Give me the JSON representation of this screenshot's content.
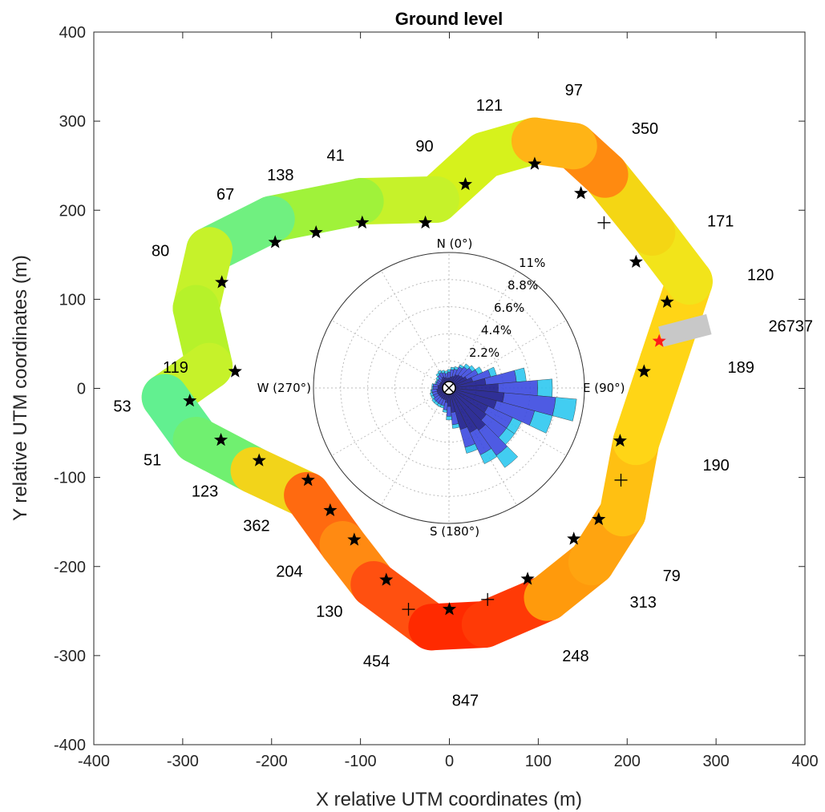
{
  "chart_data": {
    "type": "scatter",
    "title": "Ground level",
    "xlabel": "X relative UTM coordinates (m)",
    "ylabel": "Y relative UTM coordinates (m)",
    "xlim": [
      -400,
      400
    ],
    "ylim": [
      -400,
      400
    ],
    "xticks": [
      "-400",
      "-300",
      "-200",
      "-100",
      "0",
      "100",
      "200",
      "300",
      "400"
    ],
    "yticks": [
      "400",
      "300",
      "200",
      "100",
      "0",
      "-100",
      "-200",
      "-300",
      "-400"
    ],
    "grid": false,
    "colormap": "jet",
    "segment_labels": [
      {
        "text": "97",
        "x": 140,
        "y": 335
      },
      {
        "text": "121",
        "x": 45,
        "y": 318
      },
      {
        "text": "350",
        "x": 220,
        "y": 292
      },
      {
        "text": "90",
        "x": -28,
        "y": 272
      },
      {
        "text": "41",
        "x": -128,
        "y": 262
      },
      {
        "text": "138",
        "x": -190,
        "y": 240
      },
      {
        "text": "67",
        "x": -252,
        "y": 218
      },
      {
        "text": "171",
        "x": 305,
        "y": 188
      },
      {
        "text": "80",
        "x": -325,
        "y": 155
      },
      {
        "text": "120",
        "x": 350,
        "y": 128
      },
      {
        "text": "26737",
        "x": 384,
        "y": 70
      },
      {
        "text": "119",
        "x": -308,
        "y": 24
      },
      {
        "text": "189",
        "x": 328,
        "y": 24
      },
      {
        "text": "53",
        "x": -368,
        "y": -20
      },
      {
        "text": "190",
        "x": 300,
        "y": -86
      },
      {
        "text": "51",
        "x": -334,
        "y": -80
      },
      {
        "text": "123",
        "x": -275,
        "y": -115
      },
      {
        "text": "362",
        "x": -217,
        "y": -154
      },
      {
        "text": "204",
        "x": -180,
        "y": -205
      },
      {
        "text": "79",
        "x": 250,
        "y": -210
      },
      {
        "text": "313",
        "x": 218,
        "y": -240
      },
      {
        "text": "130",
        "x": -135,
        "y": -250
      },
      {
        "text": "248",
        "x": 142,
        "y": -300
      },
      {
        "text": "454",
        "x": -82,
        "y": -306
      },
      {
        "text": "847",
        "x": 18,
        "y": -350
      }
    ],
    "black_stars": [
      [
        96,
        252
      ],
      [
        18,
        229
      ],
      [
        -27,
        186
      ],
      [
        -98,
        186
      ],
      [
        -150,
        175
      ],
      [
        -196,
        164
      ],
      [
        -256,
        119
      ],
      [
        -241,
        19
      ],
      [
        -292,
        -14
      ],
      [
        -257,
        -58
      ],
      [
        -214,
        -81
      ],
      [
        -159,
        -103
      ],
      [
        -134,
        -137
      ],
      [
        -107,
        -170
      ],
      [
        -71,
        -215
      ],
      [
        0,
        -248
      ],
      [
        88,
        -214
      ],
      [
        140,
        -169
      ],
      [
        168,
        -147
      ],
      [
        192,
        -59
      ],
      [
        219,
        19
      ],
      [
        245,
        97
      ],
      [
        210,
        142
      ],
      [
        148,
        219
      ]
    ],
    "red_star": [
      236,
      53
    ],
    "plus_markers": [
      [
        174,
        186
      ],
      [
        193,
        -103
      ],
      [
        43,
        -237
      ],
      [
        -46,
        -248
      ]
    ],
    "ring_colors": {
      "green": "#4cf28a",
      "yellow": "#dff21c",
      "orange": "#ff9a0c",
      "red": "#ff2a00",
      "gray": "#c8c8c8"
    },
    "wind_rose": {
      "radial_labels": [
        "11%",
        "8.8%",
        "6.6%",
        "4.4%",
        "2.2%"
      ],
      "direction_labels": {
        "n": "N (0°)",
        "e": "E (90°)",
        "s": "S (180°)",
        "w": "W (270°)"
      },
      "colors": {
        "inner": "#1a1a8c",
        "mid": "#3b4ae0",
        "outer": "#2ec8f0",
        "tip": "#7de27d"
      },
      "bins": [
        {
          "dir": 0,
          "values": [
            0.8,
            0.5,
            0.2
          ]
        },
        {
          "dir": 10,
          "values": [
            0.9,
            0.6,
            0.2
          ]
        },
        {
          "dir": 20,
          "values": [
            1.0,
            0.6,
            0.2
          ]
        },
        {
          "dir": 30,
          "values": [
            1.2,
            0.7,
            0.2
          ]
        },
        {
          "dir": 40,
          "values": [
            1.3,
            0.8,
            0.3
          ]
        },
        {
          "dir": 50,
          "values": [
            1.4,
            0.9,
            0.3
          ]
        },
        {
          "dir": 60,
          "values": [
            1.6,
            1.0,
            0.4
          ]
        },
        {
          "dir": 70,
          "values": [
            2.0,
            1.5,
            0.5
          ]
        },
        {
          "dir": 80,
          "values": [
            3.0,
            2.5,
            0.8
          ]
        },
        {
          "dir": 90,
          "values": [
            4.0,
            3.2,
            1.2
          ]
        },
        {
          "dir": 100,
          "values": [
            4.5,
            4.2,
            1.7
          ]
        },
        {
          "dir": 110,
          "values": [
            4.0,
            3.2,
            1.5
          ]
        },
        {
          "dir": 120,
          "values": [
            3.5,
            2.2,
            0.8
          ]
        },
        {
          "dir": 130,
          "values": [
            3.7,
            2.0,
            0.8
          ]
        },
        {
          "dir": 140,
          "values": [
            4.2,
            2.5,
            1.2
          ]
        },
        {
          "dir": 150,
          "values": [
            4.0,
            2.0,
            0.8
          ]
        },
        {
          "dir": 160,
          "values": [
            3.5,
            1.5,
            0.5
          ]
        },
        {
          "dir": 170,
          "values": [
            2.0,
            1.0,
            0.3
          ]
        },
        {
          "dir": 180,
          "values": [
            1.5,
            0.8,
            0.3
          ]
        },
        {
          "dir": 190,
          "values": [
            1.2,
            0.6,
            0.2
          ]
        },
        {
          "dir": 200,
          "values": [
            1.0,
            0.5,
            0.2
          ]
        },
        {
          "dir": 210,
          "values": [
            1.0,
            0.5,
            0.2
          ]
        },
        {
          "dir": 220,
          "values": [
            1.0,
            0.5,
            0.2
          ]
        },
        {
          "dir": 230,
          "values": [
            1.0,
            0.5,
            0.2
          ]
        },
        {
          "dir": 240,
          "values": [
            1.0,
            0.4,
            0.2
          ]
        },
        {
          "dir": 250,
          "values": [
            1.0,
            0.4,
            0.2
          ]
        },
        {
          "dir": 260,
          "values": [
            1.0,
            0.4,
            0.1
          ]
        },
        {
          "dir": 270,
          "values": [
            0.9,
            0.4,
            0.1
          ]
        },
        {
          "dir": 280,
          "values": [
            0.9,
            0.4,
            0.1
          ]
        },
        {
          "dir": 290,
          "values": [
            0.8,
            0.3,
            0.1
          ]
        },
        {
          "dir": 300,
          "values": [
            0.8,
            0.3,
            0.1
          ]
        },
        {
          "dir": 310,
          "values": [
            0.8,
            0.3,
            0.2
          ]
        },
        {
          "dir": 320,
          "values": [
            0.9,
            0.4,
            0.2
          ]
        },
        {
          "dir": 330,
          "values": [
            1.0,
            0.4,
            0.2
          ]
        },
        {
          "dir": 340,
          "values": [
            0.9,
            0.4,
            0.2
          ]
        },
        {
          "dir": 350,
          "values": [
            0.8,
            0.4,
            0.2
          ]
        }
      ]
    }
  }
}
